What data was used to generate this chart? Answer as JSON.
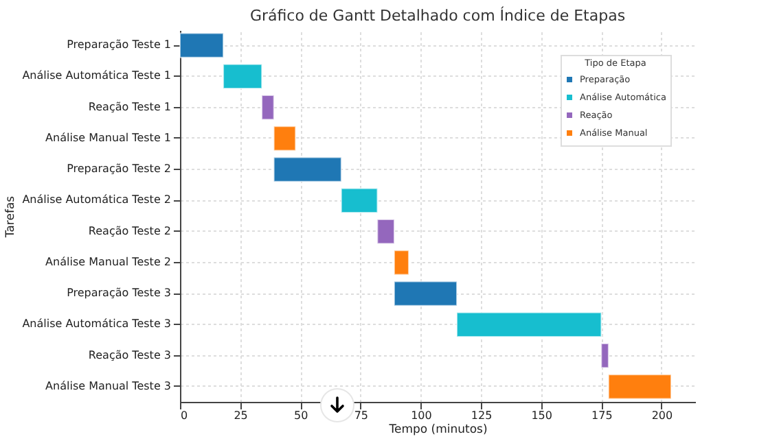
{
  "chart_data": {
    "type": "bar",
    "orientation": "horizontal",
    "title": "Gráfico de Gantt Detalhado com Índice de Etapas",
    "xlabel": "Tempo (minutos)",
    "ylabel": "Tarefas",
    "legend_title": "Tipo de Etapa",
    "legend": "top right",
    "grid": true,
    "categories": [
      "Preparação Teste 1",
      "Análise Automática Teste 1",
      "Reação Teste 1",
      "Análise Manual Teste 1",
      "Preparação Teste 2",
      "Análise Automática Teste 2",
      "Reação Teste 2",
      "Análise Manual Teste 2",
      "Preparação Teste 3",
      "Análise Automática Teste 3",
      "Reação Teste 3",
      "Análise Manual Teste 3"
    ],
    "xlim": [
      0,
      214
    ],
    "xticks": [
      0,
      25,
      50,
      75,
      100,
      125,
      150,
      175,
      200
    ],
    "series": [
      {
        "name": "Preparação",
        "color": "#1f77b4",
        "values": [
          18,
          null,
          null,
          null,
          28,
          null,
          null,
          null,
          26,
          null,
          null,
          null
        ],
        "base": [
          0,
          null,
          null,
          null,
          39,
          null,
          null,
          null,
          89,
          null,
          null,
          null
        ]
      },
      {
        "name": "Análise Automática",
        "color": "#17becf",
        "values": [
          null,
          16,
          null,
          null,
          null,
          15,
          null,
          null,
          null,
          60,
          null,
          null
        ],
        "base": [
          null,
          18,
          null,
          null,
          null,
          67,
          null,
          null,
          null,
          115,
          null,
          null
        ]
      },
      {
        "name": "Reação",
        "color": "#9467bd",
        "values": [
          null,
          null,
          5,
          null,
          null,
          null,
          7,
          null,
          null,
          null,
          3,
          null
        ],
        "base": [
          null,
          null,
          34,
          null,
          null,
          null,
          82,
          null,
          null,
          null,
          175,
          null
        ]
      },
      {
        "name": "Análise Manual",
        "color": "#ff7f0e",
        "values": [
          null,
          null,
          null,
          9,
          null,
          null,
          null,
          6,
          null,
          null,
          null,
          26
        ],
        "base": [
          null,
          null,
          null,
          39,
          null,
          null,
          null,
          89,
          null,
          null,
          null,
          178
        ]
      }
    ]
  }
}
